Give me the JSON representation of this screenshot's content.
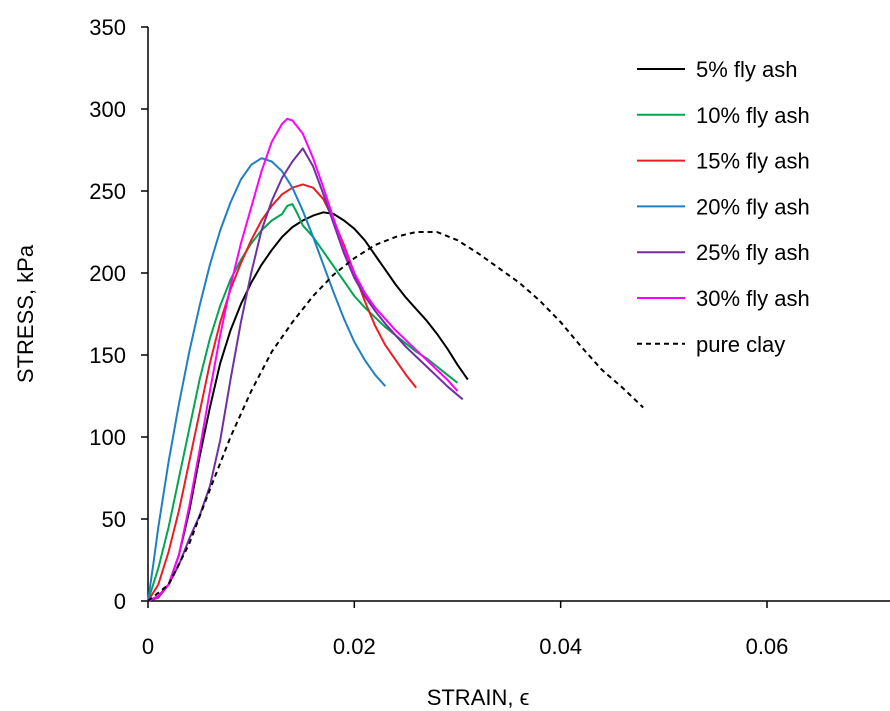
{
  "chart_data": {
    "type": "line",
    "title": "",
    "xlabel": "STRAIN, ϵ",
    "ylabel": "STRESS, kPa",
    "xlim": [
      0,
      0.07
    ],
    "ylim": [
      0,
      350
    ],
    "x_ticks": [
      0,
      0.02,
      0.04,
      0.06
    ],
    "x_tick_labels": [
      "0",
      "0.02",
      "0.04",
      "0.06"
    ],
    "y_ticks": [
      0,
      50,
      100,
      150,
      200,
      250,
      300,
      350
    ],
    "y_tick_labels": [
      "0",
      "50",
      "100",
      "150",
      "200",
      "250",
      "300",
      "350"
    ],
    "grid": false,
    "legend_position": "top-right",
    "series": [
      {
        "name": "5% fly ash",
        "color": "#000000",
        "dash": "solid",
        "points": [
          [
            0,
            0
          ],
          [
            0.001,
            3
          ],
          [
            0.002,
            10
          ],
          [
            0.003,
            28
          ],
          [
            0.004,
            55
          ],
          [
            0.005,
            88
          ],
          [
            0.006,
            118
          ],
          [
            0.007,
            145
          ],
          [
            0.008,
            165
          ],
          [
            0.009,
            181
          ],
          [
            0.01,
            194
          ],
          [
            0.011,
            205
          ],
          [
            0.012,
            214
          ],
          [
            0.013,
            222
          ],
          [
            0.014,
            228
          ],
          [
            0.015,
            232
          ],
          [
            0.016,
            235
          ],
          [
            0.017,
            237
          ],
          [
            0.018,
            236
          ],
          [
            0.019,
            232
          ],
          [
            0.02,
            227
          ],
          [
            0.021,
            220
          ],
          [
            0.022,
            211
          ],
          [
            0.023,
            202
          ],
          [
            0.024,
            193
          ],
          [
            0.025,
            185
          ],
          [
            0.026,
            178
          ],
          [
            0.027,
            171
          ],
          [
            0.028,
            163
          ],
          [
            0.029,
            154
          ],
          [
            0.03,
            144
          ],
          [
            0.031,
            135
          ]
        ]
      },
      {
        "name": "10% fly ash",
        "color": "#00a651",
        "dash": "solid",
        "points": [
          [
            0,
            0
          ],
          [
            0.001,
            20
          ],
          [
            0.002,
            45
          ],
          [
            0.003,
            75
          ],
          [
            0.004,
            105
          ],
          [
            0.005,
            135
          ],
          [
            0.006,
            160
          ],
          [
            0.007,
            180
          ],
          [
            0.008,
            196
          ],
          [
            0.009,
            208
          ],
          [
            0.01,
            218
          ],
          [
            0.011,
            226
          ],
          [
            0.012,
            232
          ],
          [
            0.013,
            236
          ],
          [
            0.0135,
            241
          ],
          [
            0.014,
            242
          ],
          [
            0.0145,
            236
          ],
          [
            0.015,
            229
          ],
          [
            0.016,
            222
          ],
          [
            0.017,
            213
          ],
          [
            0.018,
            204
          ],
          [
            0.019,
            195
          ],
          [
            0.02,
            186
          ],
          [
            0.021,
            179
          ],
          [
            0.022,
            173
          ],
          [
            0.023,
            167
          ],
          [
            0.024,
            162
          ],
          [
            0.025,
            157
          ],
          [
            0.026,
            152
          ],
          [
            0.027,
            148
          ],
          [
            0.028,
            143
          ],
          [
            0.029,
            138
          ],
          [
            0.03,
            133
          ]
        ]
      },
      {
        "name": "15% fly ash",
        "color": "#ed1c24",
        "dash": "solid",
        "points": [
          [
            0,
            0
          ],
          [
            0.001,
            10
          ],
          [
            0.002,
            30
          ],
          [
            0.003,
            55
          ],
          [
            0.004,
            85
          ],
          [
            0.005,
            115
          ],
          [
            0.006,
            145
          ],
          [
            0.007,
            170
          ],
          [
            0.008,
            190
          ],
          [
            0.009,
            206
          ],
          [
            0.01,
            220
          ],
          [
            0.011,
            232
          ],
          [
            0.012,
            241
          ],
          [
            0.013,
            248
          ],
          [
            0.014,
            252
          ],
          [
            0.015,
            254
          ],
          [
            0.016,
            252
          ],
          [
            0.017,
            245
          ],
          [
            0.018,
            232
          ],
          [
            0.019,
            217
          ],
          [
            0.02,
            200
          ],
          [
            0.021,
            183
          ],
          [
            0.022,
            168
          ],
          [
            0.023,
            156
          ],
          [
            0.024,
            147
          ],
          [
            0.025,
            138
          ],
          [
            0.026,
            130
          ]
        ]
      },
      {
        "name": "20% fly ash",
        "color": "#1f7fc4",
        "dash": "solid",
        "points": [
          [
            0,
            0
          ],
          [
            0.0005,
            22
          ],
          [
            0.001,
            45
          ],
          [
            0.002,
            85
          ],
          [
            0.003,
            120
          ],
          [
            0.004,
            152
          ],
          [
            0.005,
            180
          ],
          [
            0.006,
            205
          ],
          [
            0.007,
            226
          ],
          [
            0.008,
            243
          ],
          [
            0.009,
            257
          ],
          [
            0.01,
            266
          ],
          [
            0.011,
            270
          ],
          [
            0.012,
            268
          ],
          [
            0.013,
            262
          ],
          [
            0.014,
            252
          ],
          [
            0.015,
            238
          ],
          [
            0.016,
            222
          ],
          [
            0.017,
            205
          ],
          [
            0.018,
            188
          ],
          [
            0.019,
            172
          ],
          [
            0.02,
            158
          ],
          [
            0.021,
            147
          ],
          [
            0.022,
            138
          ],
          [
            0.023,
            131
          ]
        ]
      },
      {
        "name": "25% fly ash",
        "color": "#7030a0",
        "dash": "solid",
        "points": [
          [
            0,
            0
          ],
          [
            0.001,
            2
          ],
          [
            0.002,
            10
          ],
          [
            0.003,
            22
          ],
          [
            0.004,
            38
          ],
          [
            0.005,
            52
          ],
          [
            0.006,
            70
          ],
          [
            0.007,
            98
          ],
          [
            0.008,
            135
          ],
          [
            0.009,
            170
          ],
          [
            0.01,
            200
          ],
          [
            0.011,
            226
          ],
          [
            0.012,
            244
          ],
          [
            0.013,
            258
          ],
          [
            0.014,
            268
          ],
          [
            0.015,
            276
          ],
          [
            0.016,
            265
          ],
          [
            0.017,
            248
          ],
          [
            0.018,
            230
          ],
          [
            0.019,
            212
          ],
          [
            0.02,
            197
          ],
          [
            0.021,
            186
          ],
          [
            0.022,
            177
          ],
          [
            0.023,
            169
          ],
          [
            0.024,
            162
          ],
          [
            0.025,
            155
          ],
          [
            0.026,
            149
          ],
          [
            0.027,
            143
          ],
          [
            0.028,
            137
          ],
          [
            0.029,
            131
          ],
          [
            0.0305,
            123
          ]
        ]
      },
      {
        "name": "30% fly ash",
        "color": "#ff00ff",
        "dash": "solid",
        "points": [
          [
            0,
            0
          ],
          [
            0.001,
            3
          ],
          [
            0.002,
            10
          ],
          [
            0.003,
            28
          ],
          [
            0.004,
            58
          ],
          [
            0.005,
            92
          ],
          [
            0.006,
            128
          ],
          [
            0.007,
            162
          ],
          [
            0.008,
            192
          ],
          [
            0.009,
            218
          ],
          [
            0.01,
            240
          ],
          [
            0.011,
            262
          ],
          [
            0.012,
            280
          ],
          [
            0.013,
            291
          ],
          [
            0.0135,
            294
          ],
          [
            0.014,
            293
          ],
          [
            0.015,
            285
          ],
          [
            0.016,
            270
          ],
          [
            0.017,
            252
          ],
          [
            0.018,
            233
          ],
          [
            0.019,
            215
          ],
          [
            0.02,
            200
          ],
          [
            0.021,
            188
          ],
          [
            0.022,
            179
          ],
          [
            0.023,
            172
          ],
          [
            0.024,
            165
          ],
          [
            0.025,
            159
          ],
          [
            0.026,
            153
          ],
          [
            0.027,
            147
          ],
          [
            0.028,
            141
          ],
          [
            0.029,
            135
          ],
          [
            0.03,
            128
          ]
        ]
      },
      {
        "name": "pure clay",
        "color": "#000000",
        "dash": "dashed",
        "points": [
          [
            0,
            0
          ],
          [
            0.002,
            10
          ],
          [
            0.004,
            35
          ],
          [
            0.006,
            68
          ],
          [
            0.008,
            100
          ],
          [
            0.01,
            128
          ],
          [
            0.012,
            152
          ],
          [
            0.014,
            170
          ],
          [
            0.016,
            186
          ],
          [
            0.018,
            199
          ],
          [
            0.02,
            209
          ],
          [
            0.022,
            217
          ],
          [
            0.024,
            222
          ],
          [
            0.026,
            225
          ],
          [
            0.028,
            225
          ],
          [
            0.03,
            220
          ],
          [
            0.032,
            212
          ],
          [
            0.034,
            203
          ],
          [
            0.036,
            194
          ],
          [
            0.038,
            183
          ],
          [
            0.04,
            170
          ],
          [
            0.042,
            155
          ],
          [
            0.044,
            141
          ],
          [
            0.046,
            130
          ],
          [
            0.048,
            118
          ]
        ]
      }
    ]
  }
}
